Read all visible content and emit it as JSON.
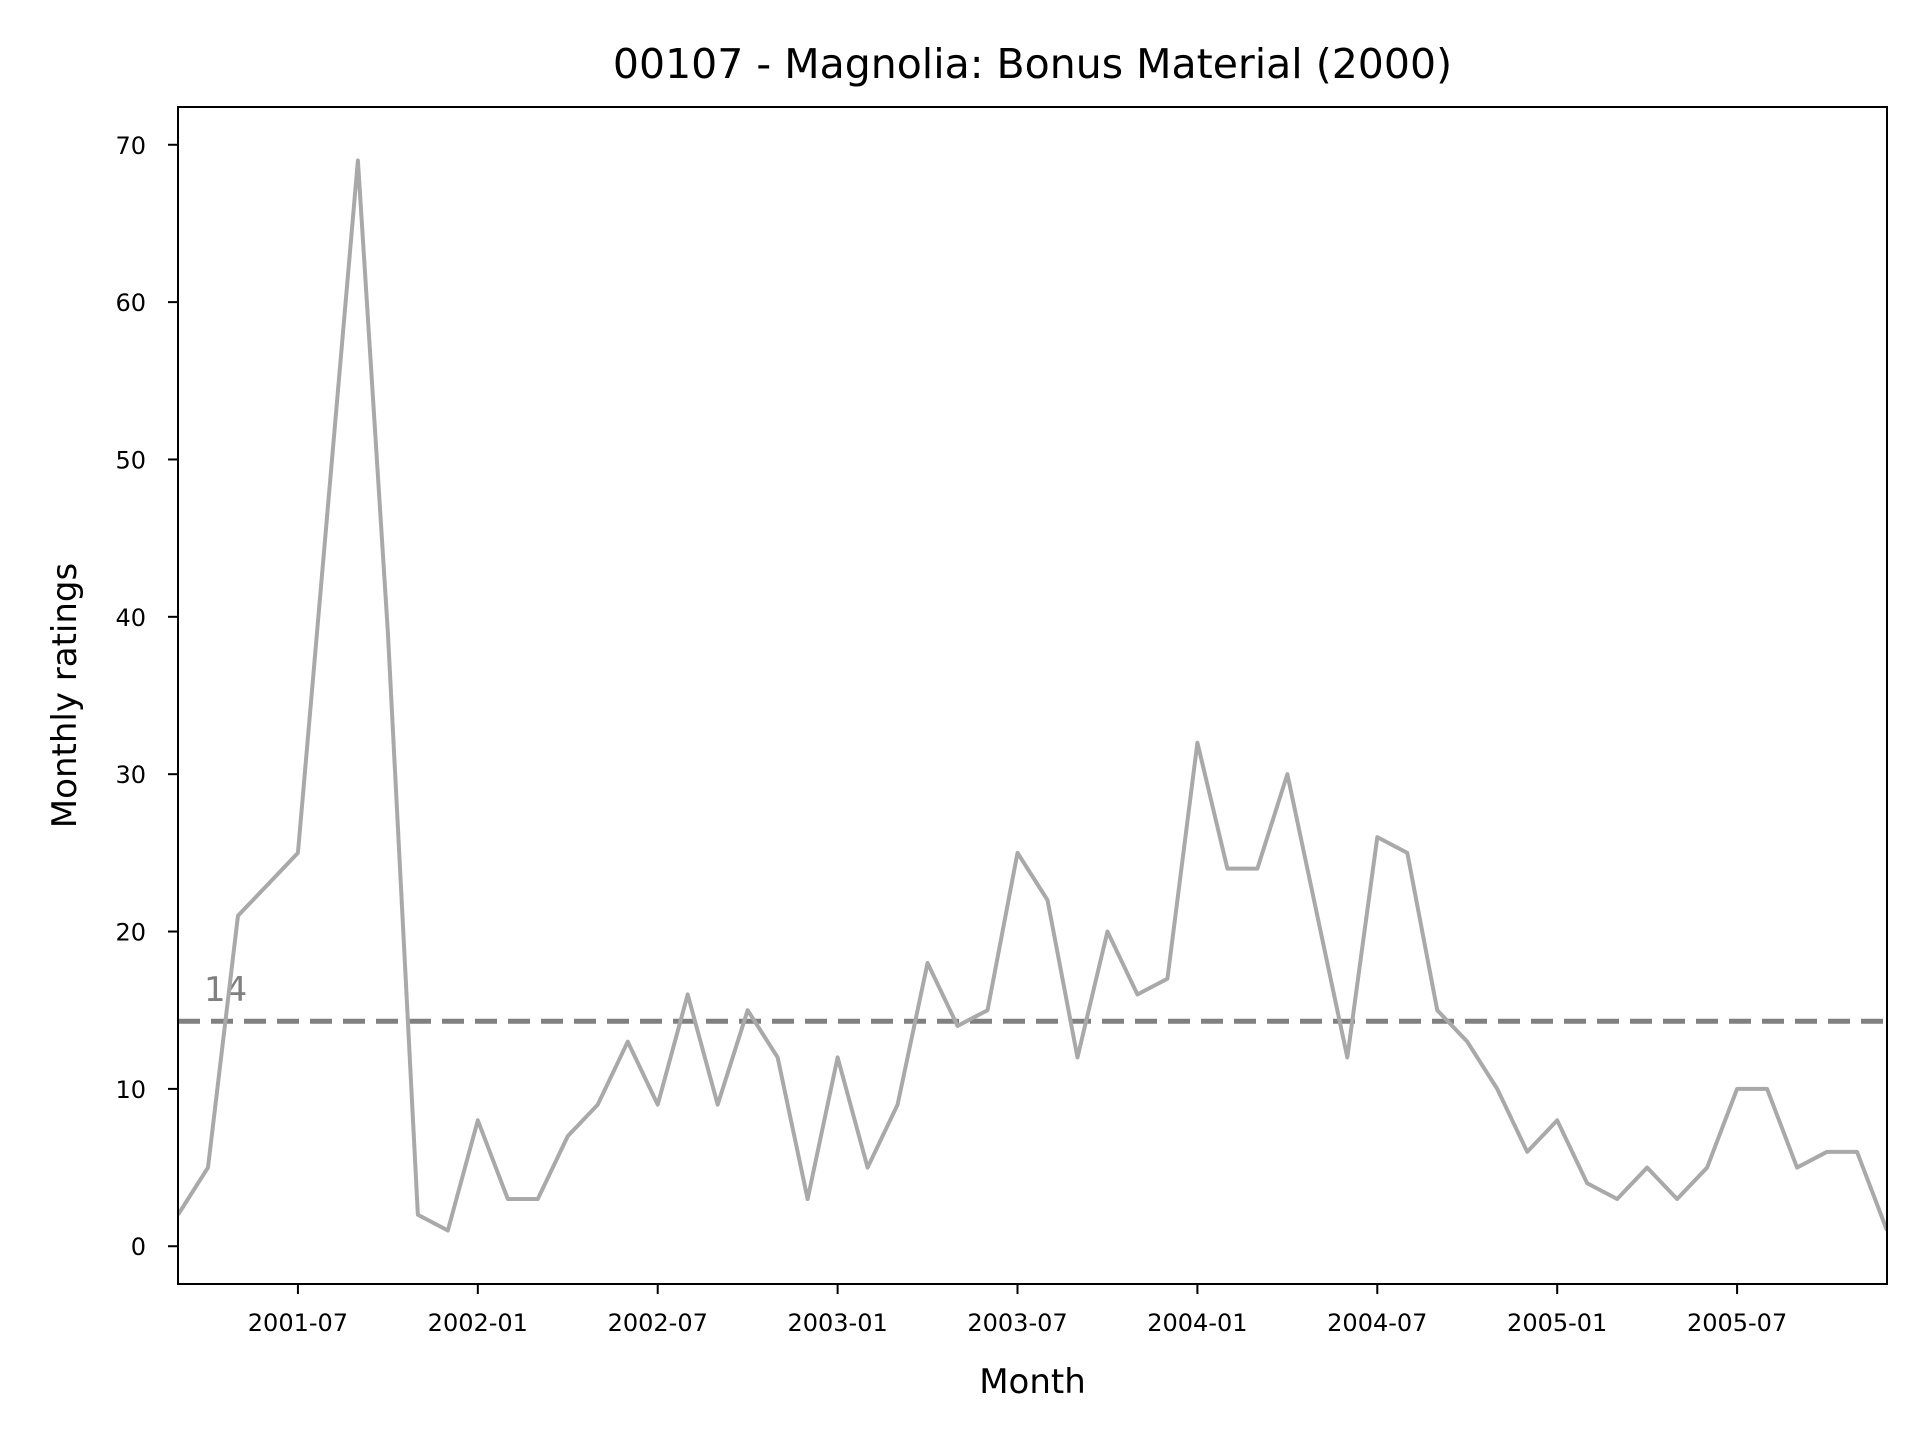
{
  "chart_data": {
    "type": "line",
    "title": "00107 - Magnolia: Bonus Material (2000)",
    "xlabel": "Month",
    "ylabel": "Monthly ratings",
    "x": [
      "2001-03",
      "2001-04",
      "2001-05",
      "2001-06",
      "2001-07",
      "2001-08",
      "2001-09",
      "2001-10",
      "2001-11",
      "2001-12",
      "2002-01",
      "2002-02",
      "2002-03",
      "2002-04",
      "2002-05",
      "2002-06",
      "2002-07",
      "2002-08",
      "2002-09",
      "2002-10",
      "2002-11",
      "2002-12",
      "2003-01",
      "2003-02",
      "2003-03",
      "2003-04",
      "2003-05",
      "2003-06",
      "2003-07",
      "2003-08",
      "2003-09",
      "2003-10",
      "2003-11",
      "2003-12",
      "2004-01",
      "2004-02",
      "2004-03",
      "2004-04",
      "2004-05",
      "2004-06",
      "2004-07",
      "2004-08",
      "2004-09",
      "2004-10",
      "2004-11",
      "2004-12",
      "2005-01",
      "2005-02",
      "2005-03",
      "2005-04",
      "2005-05",
      "2005-06",
      "2005-07",
      "2005-08",
      "2005-09",
      "2005-10",
      "2005-11",
      "2005-12"
    ],
    "series": [
      {
        "values": [
          2,
          5,
          21,
          23,
          25,
          47,
          69,
          39,
          2,
          1,
          8,
          3,
          3,
          7,
          9,
          13,
          9,
          16,
          9,
          15,
          12,
          3,
          12,
          5,
          9,
          18,
          14,
          15,
          25,
          22,
          12,
          20,
          16,
          17,
          32,
          24,
          24,
          30,
          21,
          12,
          26,
          25,
          15,
          13,
          10,
          6,
          8,
          4,
          3,
          5,
          3,
          5,
          10,
          10,
          5,
          6,
          6,
          1
        ],
        "color": "#a9a9a9"
      }
    ],
    "reference_line": {
      "value": 14.3,
      "label": "14",
      "color": "#808080",
      "style": "dashed"
    },
    "x_ticks": [
      "2001-07",
      "2002-01",
      "2002-07",
      "2003-01",
      "2003-07",
      "2004-01",
      "2004-07",
      "2005-01",
      "2005-07"
    ],
    "y_ticks": [
      0,
      10,
      20,
      30,
      40,
      50,
      60,
      70
    ],
    "xlim": [
      "2001-03",
      "2005-12"
    ],
    "ylim": [
      -2.4,
      72.4
    ],
    "grid": false,
    "legend": "none"
  }
}
